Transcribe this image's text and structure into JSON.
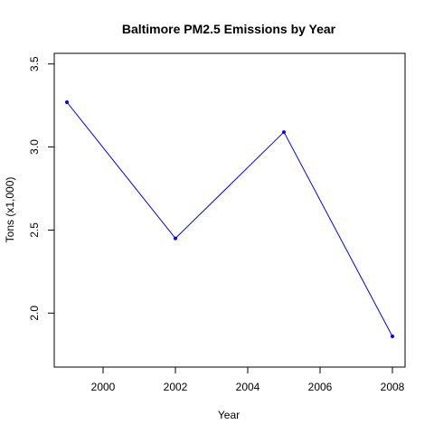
{
  "chart_data": {
    "type": "line",
    "title": "Baltimore PM2.5 Emissions by Year",
    "xlabel": "Year",
    "ylabel": "Tons (x1,000)",
    "x": [
      1999,
      2002,
      2005,
      2008
    ],
    "series": [
      {
        "values": [
          3.27,
          2.45,
          3.09,
          1.86
        ],
        "color": "#0000ff"
      }
    ],
    "xlim": [
      1999,
      2008
    ],
    "ylim": [
      1.7,
      3.57
    ],
    "xticks": [
      2000,
      2002,
      2004,
      2006,
      2008
    ],
    "yticks": [
      2.0,
      2.5,
      3.0,
      3.5
    ],
    "xtick_labels": [
      "2000",
      "2002",
      "2004",
      "2006",
      "2008"
    ],
    "ytick_labels": [
      "2.0",
      "2.5",
      "3.0",
      "3.5"
    ],
    "grid": false,
    "markers": true
  }
}
